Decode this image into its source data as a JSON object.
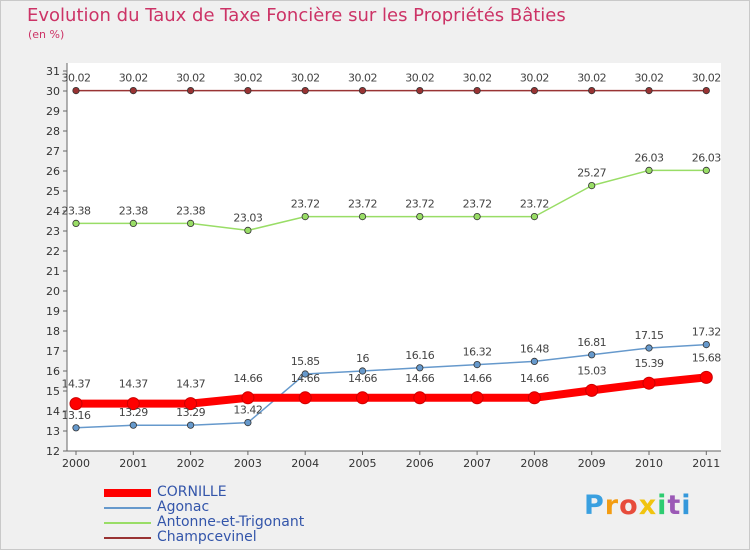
{
  "title": "Evolution du Taux de Taxe Foncière sur les Propriétés Bâties",
  "unit_label": "(en %)",
  "logo": {
    "text": "Proxiti",
    "colors": [
      "#3aa0e0",
      "#f39c12",
      "#e74c3c",
      "#f1c40f",
      "#2ecc71",
      "#9b59b6",
      "#3498db"
    ]
  },
  "chart_data": {
    "type": "line",
    "x": [
      "2000",
      "2001",
      "2002",
      "2003",
      "2004",
      "2005",
      "2006",
      "2007",
      "2008",
      "2009",
      "2010",
      "2011"
    ],
    "ylim": [
      12,
      31
    ],
    "yticks": [
      "12",
      "13",
      "14",
      "15",
      "16",
      "17",
      "18",
      "19",
      "20",
      "21",
      "22",
      "23",
      "24",
      "25",
      "26",
      "27",
      "28",
      "29",
      "30",
      "31"
    ],
    "grid": false,
    "legend_position": "bottom-left",
    "series": [
      {
        "name": "CORNILLE",
        "color": "#ff0000",
        "emphasis": true,
        "values": [
          14.37,
          14.37,
          14.37,
          14.66,
          14.66,
          14.66,
          14.66,
          14.66,
          14.66,
          15.03,
          15.39,
          15.68
        ],
        "labels": [
          "14.37",
          "14.37",
          "14.37",
          "14.66",
          "14.66",
          "14.66",
          "14.66",
          "14.66",
          "14.66",
          "15.03",
          "15.39",
          "15.68"
        ]
      },
      {
        "name": "Agonac",
        "color": "#6699cc",
        "values": [
          13.16,
          13.29,
          13.29,
          13.42,
          15.85,
          16,
          16.16,
          16.32,
          16.48,
          16.81,
          17.15,
          17.32
        ],
        "labels": [
          "13.16",
          "13.29",
          "13.29",
          "13.42",
          "15.85",
          "16",
          "16.16",
          "16.32",
          "16.48",
          "16.81",
          "17.15",
          "17.32"
        ]
      },
      {
        "name": "Antonne-et-Trigonant",
        "color": "#99dd66",
        "values": [
          23.38,
          23.38,
          23.38,
          23.03,
          23.72,
          23.72,
          23.72,
          23.72,
          23.72,
          25.27,
          26.03,
          26.03
        ],
        "labels": [
          "23.38",
          "23.38",
          "23.38",
          "23.03",
          "23.72",
          "23.72",
          "23.72",
          "23.72",
          "23.72",
          "25.27",
          "26.03",
          "26.03"
        ]
      },
      {
        "name": "Champcevinel",
        "color": "#993333",
        "values": [
          30.02,
          30.02,
          30.02,
          30.02,
          30.02,
          30.02,
          30.02,
          30.02,
          30.02,
          30.02,
          30.02,
          30.02
        ],
        "labels": [
          "30.02",
          "30.02",
          "30.02",
          "30.02",
          "30.02",
          "30.02",
          "30.02",
          "30.02",
          "30.02",
          "30.02",
          "30.02",
          "30.02"
        ]
      }
    ]
  }
}
